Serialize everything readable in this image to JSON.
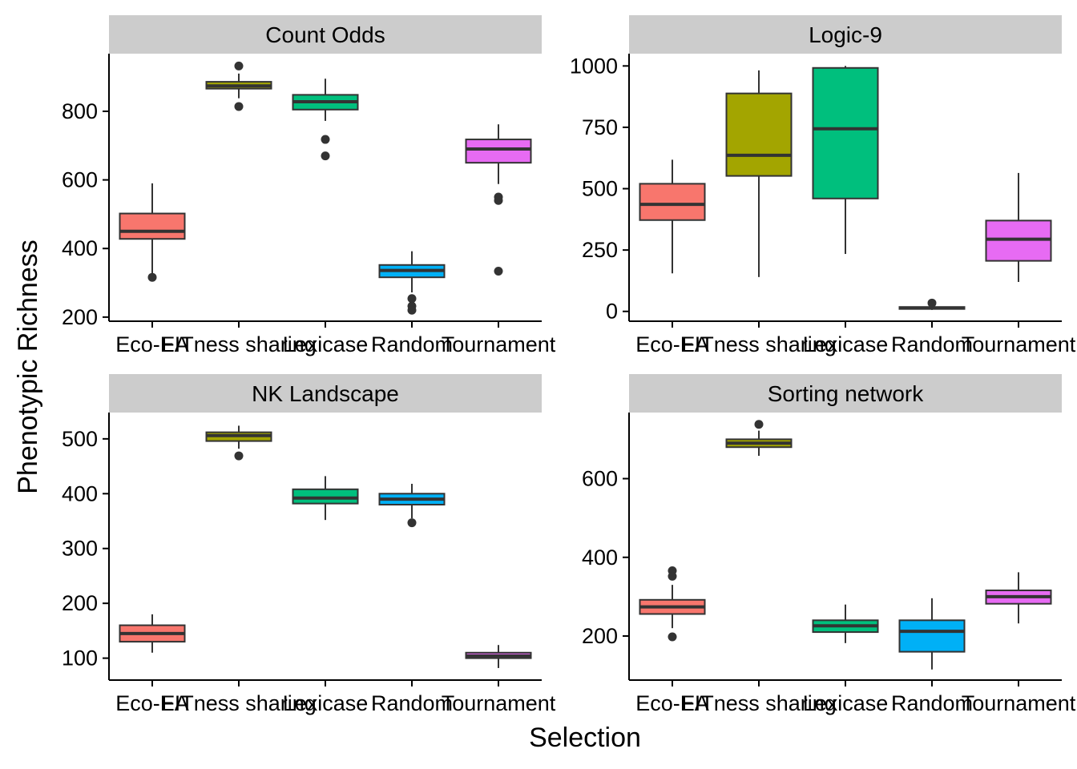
{
  "ylabel": "Phenotypic Richness",
  "xlabel": "Selection",
  "box_colors": [
    "#F8766D",
    "#A3A500",
    "#00BF7D",
    "#00B0F6",
    "#E76BF3"
  ],
  "chart_data": [
    {
      "type": "box",
      "title": "Count Odds",
      "categories": [
        "Eco-EA",
        "FITness sharing",
        "Lexicase",
        "Random",
        "Tournament"
      ],
      "y_ticks": [
        200,
        400,
        600,
        800
      ],
      "ylim": [
        188,
        968
      ],
      "boxes": [
        {
          "min": 322,
          "q1": 428,
          "median": 450,
          "q3": 502,
          "max": 590,
          "outliers": [
            316
          ]
        },
        {
          "min": 838,
          "q1": 866,
          "median": 874,
          "q3": 886,
          "max": 910,
          "outliers": [
            932,
            814
          ]
        },
        {
          "min": 772,
          "q1": 805,
          "median": 828,
          "q3": 848,
          "max": 895,
          "outliers": [
            718,
            670
          ]
        },
        {
          "min": 272,
          "q1": 316,
          "median": 336,
          "q3": 352,
          "max": 392,
          "outliers": [
            254,
            232,
            220
          ]
        },
        {
          "min": 588,
          "q1": 650,
          "median": 690,
          "q3": 718,
          "max": 762,
          "outliers": [
            550,
            540,
            334
          ]
        }
      ]
    },
    {
      "type": "box",
      "title": "Logic-9",
      "categories": [
        "Eco-EA",
        "FITness sharing",
        "Lexicase",
        "Random",
        "Tournament"
      ],
      "y_ticks": [
        0,
        250,
        500,
        750,
        1000
      ],
      "ylim": [
        -40,
        1050
      ],
      "boxes": [
        {
          "min": 155,
          "q1": 372,
          "median": 436,
          "q3": 520,
          "max": 618,
          "outliers": []
        },
        {
          "min": 140,
          "q1": 552,
          "median": 636,
          "q3": 888,
          "max": 982,
          "outliers": []
        },
        {
          "min": 234,
          "q1": 460,
          "median": 744,
          "q3": 992,
          "max": 1000,
          "outliers": []
        },
        {
          "min": 6,
          "q1": 10,
          "median": 14,
          "q3": 18,
          "max": 24,
          "outliers": [
            34
          ]
        },
        {
          "min": 120,
          "q1": 206,
          "median": 294,
          "q3": 370,
          "max": 564,
          "outliers": []
        }
      ]
    },
    {
      "type": "box",
      "title": "NK Landscape",
      "categories": [
        "Eco-EA",
        "FITness sharing",
        "Lexicase",
        "Random",
        "Tournament"
      ],
      "y_ticks": [
        100,
        200,
        300,
        400,
        500
      ],
      "ylim": [
        60,
        548
      ],
      "boxes": [
        {
          "min": 110,
          "q1": 130,
          "median": 145,
          "q3": 160,
          "max": 180,
          "outliers": []
        },
        {
          "min": 482,
          "q1": 496,
          "median": 506,
          "q3": 512,
          "max": 524,
          "outliers": [
            469
          ]
        },
        {
          "min": 352,
          "q1": 382,
          "median": 392,
          "q3": 408,
          "max": 432,
          "outliers": []
        },
        {
          "min": 355,
          "q1": 380,
          "median": 390,
          "q3": 400,
          "max": 418,
          "outliers": [
            347
          ]
        },
        {
          "min": 82,
          "q1": 100,
          "median": 104,
          "q3": 110,
          "max": 124,
          "outliers": []
        }
      ]
    },
    {
      "type": "box",
      "title": "Sorting network",
      "categories": [
        "Eco-EA",
        "FITness sharing",
        "Lexicase",
        "Random",
        "Tournament"
      ],
      "y_ticks": [
        200,
        400,
        600
      ],
      "ylim": [
        88,
        768
      ],
      "boxes": [
        {
          "min": 220,
          "q1": 256,
          "median": 274,
          "q3": 292,
          "max": 330,
          "outliers": [
            366,
            352,
            198
          ]
        },
        {
          "min": 658,
          "q1": 680,
          "median": 690,
          "q3": 700,
          "max": 722,
          "outliers": [
            738
          ]
        },
        {
          "min": 182,
          "q1": 210,
          "median": 226,
          "q3": 240,
          "max": 280,
          "outliers": []
        },
        {
          "min": 115,
          "q1": 160,
          "median": 212,
          "q3": 240,
          "max": 296,
          "outliers": []
        },
        {
          "min": 232,
          "q1": 282,
          "median": 300,
          "q3": 316,
          "max": 362,
          "outliers": []
        }
      ]
    }
  ]
}
